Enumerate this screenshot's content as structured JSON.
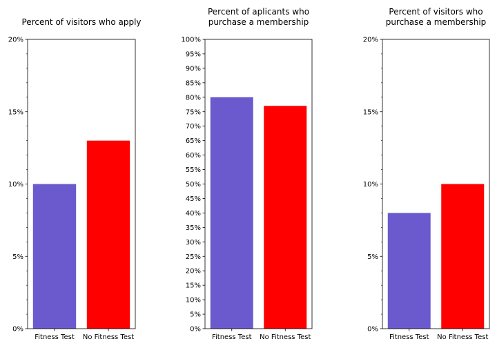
{
  "colors": {
    "fitness_test": "#6a5acd",
    "no_fitness_test": "#ff0000",
    "axis": "#000000",
    "background": "#ffffff"
  },
  "chart_data": [
    {
      "type": "bar",
      "title": "Percent of visitors who apply",
      "categories": [
        "Fitness Test",
        "No Fitness Test"
      ],
      "values": [
        10,
        13
      ],
      "value_unit": "percent",
      "ylim": [
        0,
        20
      ],
      "yticks": [
        0,
        5,
        10,
        15,
        20
      ],
      "ytick_labels": [
        "0%",
        "5%",
        "10%",
        "15%",
        "20%"
      ],
      "minor_ticks": true,
      "grid": false,
      "legend": "none"
    },
    {
      "type": "bar",
      "title": "Percent of aplicants who\npurchase a membership",
      "categories": [
        "Fitness Test",
        "No Fitness Test"
      ],
      "values": [
        80,
        77
      ],
      "value_unit": "percent",
      "ylim": [
        0,
        100
      ],
      "yticks": [
        0,
        5,
        10,
        15,
        20,
        25,
        30,
        35,
        40,
        45,
        50,
        55,
        60,
        65,
        70,
        75,
        80,
        85,
        90,
        95,
        100
      ],
      "ytick_labels": [
        "0%",
        "5%",
        "10%",
        "15%",
        "20%",
        "25%",
        "30%",
        "35%",
        "40%",
        "45%",
        "50%",
        "55%",
        "60%",
        "65%",
        "70%",
        "75%",
        "80%",
        "85%",
        "90%",
        "95%",
        "100%"
      ],
      "minor_ticks": false,
      "grid": false,
      "legend": "none"
    },
    {
      "type": "bar",
      "title": "Percent of visitors who\npurchase a membership",
      "categories": [
        "Fitness Test",
        "No Fitness Test"
      ],
      "values": [
        8,
        10
      ],
      "value_unit": "percent",
      "ylim": [
        0,
        20
      ],
      "yticks": [
        0,
        5,
        10,
        15,
        20
      ],
      "ytick_labels": [
        "0%",
        "5%",
        "10%",
        "15%",
        "20%"
      ],
      "minor_ticks": true,
      "grid": false,
      "legend": "none"
    }
  ]
}
